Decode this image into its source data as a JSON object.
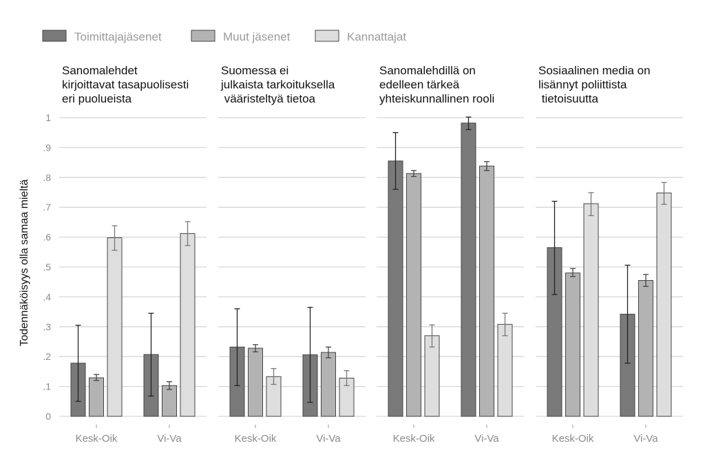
{
  "chart_data": {
    "type": "bar",
    "ylabel": "Todennäköisyys olla samaa mieltä",
    "ylim": [
      0,
      1
    ],
    "yticks": [
      {
        "value": 0,
        "label": "0"
      },
      {
        "value": 0.1,
        "label": ".1"
      },
      {
        "value": 0.2,
        "label": ".2"
      },
      {
        "value": 0.3,
        "label": ".3"
      },
      {
        "value": 0.4,
        "label": ".4"
      },
      {
        "value": 0.5,
        "label": ".5"
      },
      {
        "value": 0.6,
        "label": ".6"
      },
      {
        "value": 0.7,
        "label": ".7"
      },
      {
        "value": 0.8,
        "label": ".8"
      },
      {
        "value": 0.9,
        "label": ".9"
      },
      {
        "value": 1,
        "label": "1"
      }
    ],
    "categories": [
      "Kesk-Oik",
      "Vi-Va"
    ],
    "series": [
      {
        "name": "Toimittajajäsenet",
        "color": "#7a7a7a"
      },
      {
        "name": "Muut jäsenet",
        "color": "#b3b3b3"
      },
      {
        "name": "Kannattajat",
        "color": "#dedede"
      }
    ],
    "legend_position": "top-left",
    "panels": [
      {
        "title_lines": [
          "Sanomalehdet",
          "kirjoittavat tasapuolisesti",
          "eri puolueista"
        ],
        "values": [
          [
            0.178,
            0.207
          ],
          [
            0.129,
            0.103
          ],
          [
            0.598,
            0.612
          ]
        ],
        "errors": [
          [
            [
              0.05,
              0.305
            ],
            [
              0.068,
              0.345
            ]
          ],
          [
            [
              0.12,
              0.14
            ],
            [
              0.09,
              0.116
            ]
          ],
          [
            [
              0.556,
              0.638
            ],
            [
              0.572,
              0.652
            ]
          ]
        ]
      },
      {
        "title_lines": [
          "Suomessa ei",
          "julkaista tarkoituksella",
          " vääristeltyä tietoa"
        ],
        "values": [
          [
            0.232,
            0.206
          ],
          [
            0.228,
            0.214
          ],
          [
            0.133,
            0.128
          ]
        ],
        "errors": [
          [
            [
              0.103,
              0.36
            ],
            [
              0.047,
              0.365
            ]
          ],
          [
            [
              0.216,
              0.24
            ],
            [
              0.196,
              0.232
            ]
          ],
          [
            [
              0.107,
              0.16
            ],
            [
              0.103,
              0.153
            ]
          ]
        ]
      },
      {
        "title_lines": [
          "Sanomalehdillä on",
          "edelleen tärkeä",
          "yhteiskunnallinen rooli"
        ],
        "values": [
          [
            0.855,
            0.982
          ],
          [
            0.813,
            0.838
          ],
          [
            0.27,
            0.308
          ]
        ],
        "errors": [
          [
            [
              0.76,
              0.95
            ],
            [
              0.96,
              1.002
            ]
          ],
          [
            [
              0.803,
              0.823
            ],
            [
              0.823,
              0.853
            ]
          ],
          [
            [
              0.232,
              0.306
            ],
            [
              0.27,
              0.345
            ]
          ]
        ]
      },
      {
        "title_lines": [
          "Sosiaalinen media on",
          "lisännyt poliittista",
          " tietoisuutta"
        ],
        "values": [
          [
            0.565,
            0.342
          ],
          [
            0.48,
            0.455
          ],
          [
            0.712,
            0.748
          ]
        ],
        "errors": [
          [
            [
              0.408,
              0.72
            ],
            [
              0.178,
              0.506
            ]
          ],
          [
            [
              0.468,
              0.495
            ],
            [
              0.435,
              0.475
            ]
          ],
          [
            [
              0.672,
              0.749
            ],
            [
              0.71,
              0.783
            ]
          ]
        ]
      }
    ]
  }
}
